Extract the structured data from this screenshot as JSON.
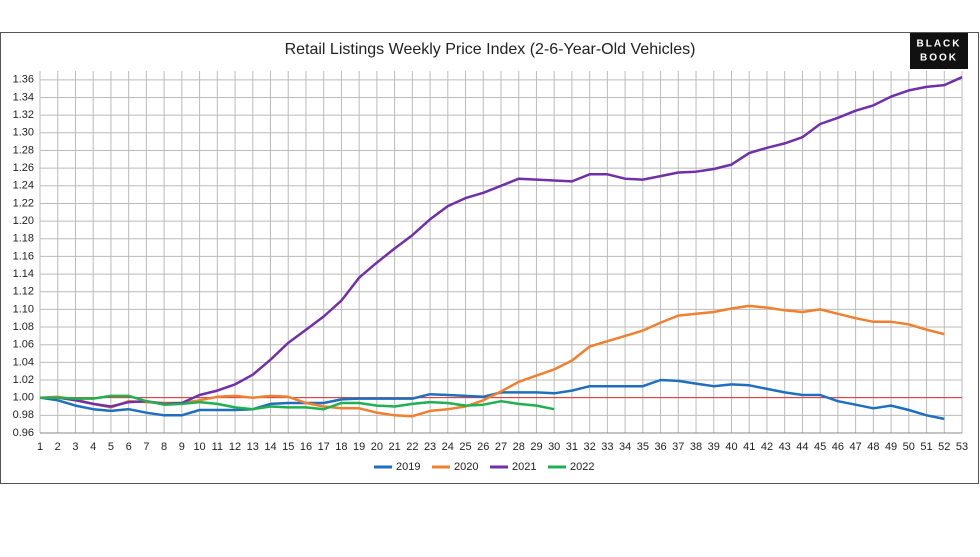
{
  "chart_data": {
    "type": "line",
    "title": "Retail Listings Weekly Price Index (2-6-Year-Old Vehicles)",
    "logo": [
      "BLACK",
      "BOOK"
    ],
    "x": [
      1,
      2,
      3,
      4,
      5,
      6,
      7,
      8,
      9,
      10,
      11,
      12,
      13,
      14,
      15,
      16,
      17,
      18,
      19,
      20,
      21,
      22,
      23,
      24,
      25,
      26,
      27,
      28,
      29,
      30,
      31,
      32,
      33,
      34,
      35,
      36,
      37,
      38,
      39,
      40,
      41,
      42,
      43,
      44,
      45,
      46,
      47,
      48,
      49,
      50,
      51,
      52,
      53
    ],
    "xlim": [
      1,
      53
    ],
    "xticks": [
      1,
      2,
      3,
      4,
      5,
      6,
      7,
      8,
      9,
      10,
      11,
      12,
      13,
      14,
      15,
      16,
      17,
      18,
      19,
      20,
      21,
      22,
      23,
      24,
      25,
      26,
      27,
      28,
      29,
      30,
      31,
      32,
      33,
      34,
      35,
      36,
      37,
      38,
      39,
      40,
      41,
      42,
      43,
      44,
      45,
      46,
      47,
      48,
      49,
      50,
      51,
      52,
      53
    ],
    "ylim": [
      0.96,
      1.37
    ],
    "yticks": [
      {
        "value": 0.96,
        "label": "0.96"
      },
      {
        "value": 0.98,
        "label": "0.98"
      },
      {
        "value": 1.0,
        "label": "1.00"
      },
      {
        "value": 1.02,
        "label": "1.02"
      },
      {
        "value": 1.04,
        "label": "1.04"
      },
      {
        "value": 1.06,
        "label": "1.06"
      },
      {
        "value": 1.08,
        "label": "1.08"
      },
      {
        "value": 1.1,
        "label": "1.10"
      },
      {
        "value": 1.12,
        "label": "1.12"
      },
      {
        "value": 1.14,
        "label": "1.14"
      },
      {
        "value": 1.16,
        "label": "1.16"
      },
      {
        "value": 1.18,
        "label": "1.18"
      },
      {
        "value": 1.2,
        "label": "1.20"
      },
      {
        "value": 1.22,
        "label": "1.22"
      },
      {
        "value": 1.24,
        "label": "1.24"
      },
      {
        "value": 1.26,
        "label": "1.26"
      },
      {
        "value": 1.28,
        "label": "1.28"
      },
      {
        "value": 1.3,
        "label": "1.30"
      },
      {
        "value": 1.32,
        "label": "1.32"
      },
      {
        "value": 1.34,
        "label": "1.34"
      },
      {
        "value": 1.36,
        "label": "1.36"
      }
    ],
    "grid": true,
    "reference_line": {
      "value": 1.0,
      "color": "#e03030"
    },
    "legend": "bottom",
    "series": [
      {
        "name": "2019",
        "color": "#1f6fbf",
        "values": [
          1.0,
          0.997,
          0.991,
          0.987,
          0.985,
          0.987,
          0.983,
          0.98,
          0.98,
          0.986,
          0.986,
          0.986,
          0.987,
          0.993,
          0.994,
          0.994,
          0.994,
          0.998,
          0.999,
          0.999,
          0.999,
          0.999,
          1.004,
          1.003,
          1.002,
          1.001,
          1.006,
          1.006,
          1.006,
          1.005,
          1.008,
          1.013,
          1.013,
          1.013,
          1.013,
          1.02,
          1.019,
          1.016,
          1.013,
          1.015,
          1.014,
          1.01,
          1.006,
          1.003,
          1.003,
          0.996,
          0.992,
          0.988,
          0.991,
          0.986,
          0.98,
          0.976,
          null
        ]
      },
      {
        "name": "2020",
        "color": "#f08030",
        "values": [
          1.0,
          1.001,
          0.998,
          0.993,
          0.989,
          0.996,
          0.995,
          0.994,
          0.994,
          0.997,
          1.001,
          1.002,
          1.0,
          1.002,
          1.001,
          0.994,
          0.99,
          0.988,
          0.988,
          0.983,
          0.98,
          0.979,
          0.985,
          0.987,
          0.99,
          0.997,
          1.007,
          1.018,
          1.025,
          1.032,
          1.042,
          1.058,
          1.064,
          1.07,
          1.076,
          1.085,
          1.093,
          1.095,
          1.097,
          1.101,
          1.104,
          1.102,
          1.099,
          1.097,
          1.1,
          1.095,
          1.09,
          1.086,
          1.086,
          1.083,
          1.077,
          1.072,
          null
        ]
      },
      {
        "name": "2021",
        "color": "#7030a8",
        "values": [
          1.0,
          1.0,
          0.997,
          0.993,
          0.99,
          0.995,
          0.996,
          0.993,
          0.994,
          1.003,
          1.008,
          1.015,
          1.026,
          1.043,
          1.062,
          1.077,
          1.092,
          1.11,
          1.136,
          1.153,
          1.169,
          1.184,
          1.202,
          1.217,
          1.226,
          1.232,
          1.24,
          1.248,
          1.247,
          1.246,
          1.245,
          1.253,
          1.253,
          1.248,
          1.247,
          1.251,
          1.255,
          1.256,
          1.259,
          1.264,
          1.277,
          1.283,
          1.288,
          1.295,
          1.31,
          1.317,
          1.325,
          1.331,
          1.341,
          1.348,
          1.352,
          1.354,
          1.363
        ]
      },
      {
        "name": "2022",
        "color": "#20b050",
        "values": [
          1.0,
          1.0,
          0.999,
          0.999,
          1.002,
          1.002,
          0.996,
          0.992,
          0.993,
          0.995,
          0.993,
          0.989,
          0.987,
          0.99,
          0.989,
          0.989,
          0.987,
          0.994,
          0.994,
          0.991,
          0.99,
          0.993,
          0.995,
          0.994,
          0.991,
          0.992,
          0.996,
          0.993,
          0.991,
          0.987,
          null,
          null,
          null,
          null,
          null,
          null,
          null,
          null,
          null,
          null,
          null,
          null,
          null,
          null,
          null,
          null,
          null,
          null,
          null,
          null,
          null,
          null,
          null
        ]
      }
    ]
  }
}
